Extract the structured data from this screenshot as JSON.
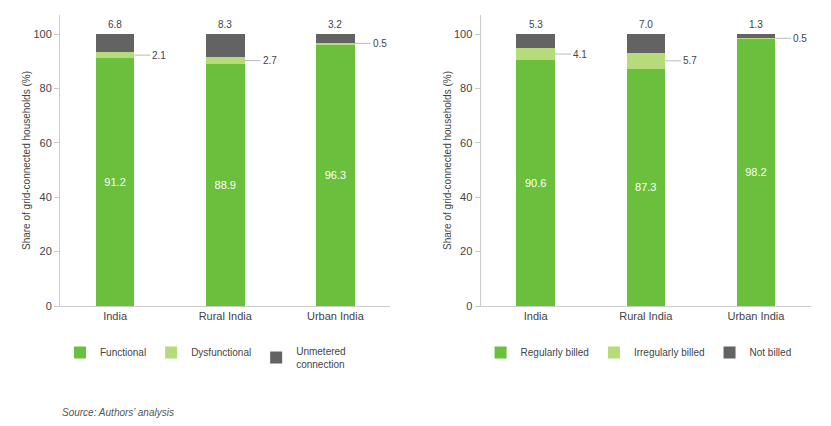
{
  "chart_data": [
    {
      "type": "bar",
      "stacked": true,
      "categories": [
        "India",
        "Rural India",
        "Urban India"
      ],
      "series": [
        {
          "name": "Functional",
          "color": "#6abf3c",
          "values": [
            91.2,
            88.9,
            96.3
          ]
        },
        {
          "name": "Dysfunctional",
          "color": "#b5db7a",
          "values": [
            2.1,
            2.7,
            0.5
          ]
        },
        {
          "name": "Unmetered\nconnection",
          "color": "#636363",
          "values": [
            6.8,
            8.3,
            3.2
          ]
        }
      ],
      "ylabel": "Share of grid-connected households (%)",
      "ylim": [
        0,
        107
      ],
      "yticks": [
        0,
        20,
        40,
        60,
        80,
        100
      ],
      "data_labels": true,
      "grid": false,
      "legend": "bottom",
      "annotations": [
        "Source: Authors’ analysis"
      ]
    },
    {
      "type": "bar",
      "stacked": true,
      "categories": [
        "India",
        "Rural India",
        "Urban India"
      ],
      "series": [
        {
          "name": "Regularly billed",
          "color": "#6abf3c",
          "values": [
            90.6,
            87.3,
            98.2
          ]
        },
        {
          "name": "Irregularly billed",
          "color": "#b5db7a",
          "values": [
            4.1,
            5.7,
            0.5
          ]
        },
        {
          "name": "Not billed",
          "color": "#636363",
          "values": [
            5.3,
            7.0,
            1.3
          ],
          "value_labels": [
            "5.3",
            "7.0",
            "1.3"
          ]
        }
      ],
      "ylabel": "Share of grid-connected households (%)",
      "ylim": [
        0,
        107
      ],
      "yticks": [
        0,
        20,
        40,
        60,
        80,
        100
      ],
      "data_labels": true,
      "grid": false,
      "legend": "bottom"
    }
  ]
}
